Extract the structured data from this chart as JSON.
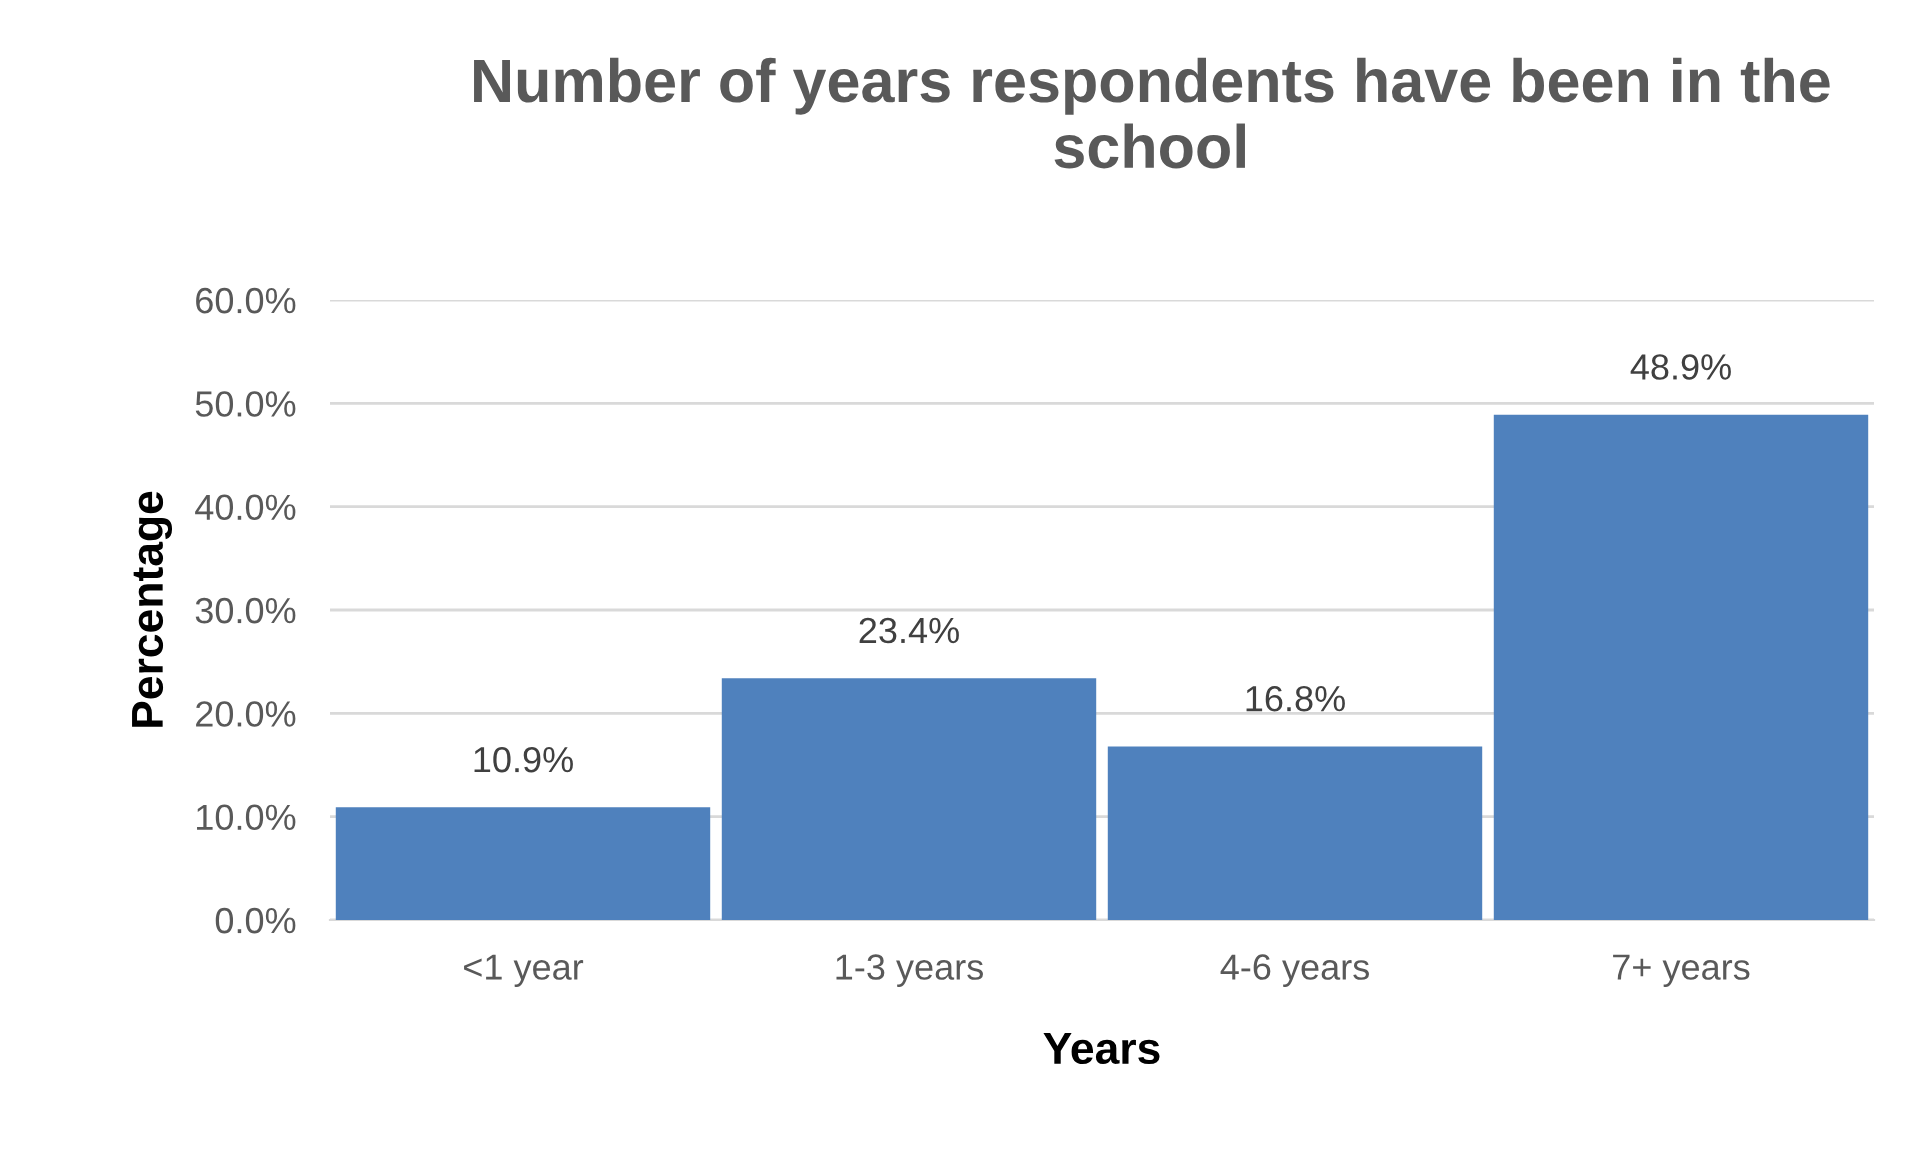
{
  "chart_data": {
    "type": "bar",
    "title": "Number of years respondents have been in the school",
    "xlabel": "Years",
    "ylabel": "Percentage",
    "categories": [
      "<1 year",
      "1-3 years",
      "4-6 years",
      "7+ years"
    ],
    "values": [
      10.9,
      23.4,
      16.8,
      48.9
    ],
    "color": "#4f81bd",
    "value_labels": [
      "10.9%",
      "23.4%",
      "16.8%",
      "48.9%"
    ],
    "ylim": [
      0,
      60
    ],
    "yticks": [
      {
        "value": 0,
        "label": "0.0%"
      },
      {
        "value": 10,
        "label": "10.0%"
      },
      {
        "value": 20,
        "label": "20.0%"
      },
      {
        "value": 30,
        "label": "30.0%"
      },
      {
        "value": 40,
        "label": "40.0%"
      },
      {
        "value": 50,
        "label": "50.0%"
      },
      {
        "value": 60,
        "label": "60.0%"
      }
    ],
    "grid": "y",
    "legend": false
  }
}
